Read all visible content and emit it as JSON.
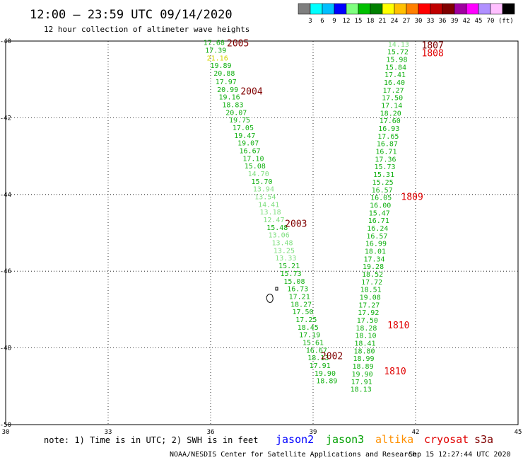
{
  "chart_data": {
    "type": "scatter",
    "title": "12:00 – 23:59 UTC 09/14/2020",
    "subtitle": "12 hour collection of altimeter wave heights",
    "xlim": [
      30,
      45
    ],
    "ylim": [
      -50,
      -40
    ],
    "x_ticks": [
      "30",
      "33",
      "36",
      "39",
      "42",
      "45"
    ],
    "y_ticks": [
      "-40",
      "-42",
      "-44",
      "-46",
      "-48",
      "-50"
    ],
    "grid": true,
    "legend": {
      "values": [
        "3",
        "6",
        "9",
        "12",
        "15",
        "18",
        "21",
        "24",
        "27",
        "30",
        "33",
        "36",
        "39",
        "42",
        "45",
        "70"
      ],
      "unit": "(ft)",
      "colors": [
        "#7f7f7f",
        "#00ffff",
        "#00bfff",
        "#0000ff",
        "#7fff7f",
        "#00c000",
        "#008000",
        "#ffff00",
        "#ffc000",
        "#ff8000",
        "#ff0000",
        "#c00000",
        "#800000",
        "#a000a0",
        "#ff00ff",
        "#b090ff",
        "#ffc0ff",
        "#000000"
      ]
    },
    "track_colors": {
      "light_green": "#7fdf7f",
      "green": "#12b012",
      "yellow": "#d4d400",
      "dark_red": "#800000",
      "red": "#e00000"
    },
    "series": [
      {
        "name": "jason3",
        "x": [
          36.1,
          36.15,
          36.2,
          36.3,
          36.4,
          36.45,
          36.5,
          36.55,
          36.65,
          36.75,
          36.85,
          36.95,
          37.0,
          37.1,
          37.15,
          37.25,
          37.3,
          37.4,
          37.5,
          37.55,
          37.6,
          37.7,
          37.75,
          37.85,
          37.95,
          38.0,
          38.1,
          38.15,
          38.2,
          38.3,
          38.35,
          38.45,
          38.55,
          38.6,
          38.65,
          38.7,
          38.8,
          38.85,
          38.9,
          39.0,
          39.1,
          39.15,
          39.2,
          39.35,
          39.4
        ],
        "y": [
          -40.03,
          -40.23,
          -40.43,
          -40.63,
          -40.83,
          -41.05,
          -41.25,
          -41.45,
          -41.65,
          -41.85,
          -42.05,
          -42.25,
          -42.45,
          -42.65,
          -42.85,
          -43.05,
          -43.25,
          -43.45,
          -43.65,
          -43.85,
          -44.05,
          -44.25,
          -44.45,
          -44.65,
          -44.85,
          -45.05,
          -45.25,
          -45.45,
          -45.65,
          -45.85,
          -46.05,
          -46.25,
          -46.45,
          -46.65,
          -46.85,
          -47.05,
          -47.25,
          -47.45,
          -47.65,
          -47.85,
          -48.05,
          -48.25,
          -48.45,
          -48.65,
          -48.85
        ],
        "values": [
          "17.68",
          "17.39",
          "21.16",
          "19.89",
          "20.88",
          "17.97",
          "20.99",
          "19.16",
          "18.83",
          "20.07",
          "19.75",
          "17.05",
          "19.47",
          "19.07",
          "16.67",
          "17.10",
          "15.08",
          "14.70",
          "15.70",
          "13.94",
          "13.54",
          "14.41",
          "13.18",
          "12.47",
          "15.48",
          "13.06",
          "13.48",
          "13.25",
          "13.33",
          "15.21",
          "15.73",
          "15.08",
          "16.73",
          "17.21",
          "18.27",
          "17.50",
          "17.25",
          "18.45",
          "17.19",
          "15.61",
          "16.67",
          "18.13",
          "17.91",
          "19.90",
          "18.89"
        ],
        "value_classes": [
          "green",
          "green",
          "yellow",
          "green",
          "green",
          "green",
          "green",
          "green",
          "green",
          "green",
          "green",
          "green",
          "green",
          "green",
          "green",
          "green",
          "green",
          "light_green",
          "green",
          "light_green",
          "light_green",
          "light_green",
          "light_green",
          "light_green",
          "green",
          "light_green",
          "light_green",
          "light_green",
          "light_green",
          "green",
          "green",
          "green",
          "green",
          "green",
          "green",
          "green",
          "green",
          "green",
          "green",
          "green",
          "green",
          "green",
          "green",
          "green",
          "green"
        ]
      },
      {
        "name": "jason3",
        "x": [
          41.5,
          41.48,
          41.45,
          41.42,
          41.4,
          41.38,
          41.35,
          41.32,
          41.3,
          41.27,
          41.25,
          41.22,
          41.2,
          41.17,
          41.14,
          41.12,
          41.1,
          41.07,
          41.04,
          41.02,
          40.99,
          40.97,
          40.94,
          40.92,
          40.89,
          40.87,
          40.84,
          40.82,
          40.79,
          40.76,
          40.74,
          40.72,
          40.69,
          40.67,
          40.64,
          40.62,
          40.59,
          40.56,
          40.54,
          40.52,
          40.5,
          40.48,
          40.46,
          40.44,
          40.42,
          40.4
        ],
        "y": [
          -40.07,
          -40.27,
          -40.47,
          -40.67,
          -40.87,
          -41.07,
          -41.27,
          -41.47,
          -41.67,
          -41.87,
          -42.07,
          -42.27,
          -42.47,
          -42.67,
          -42.87,
          -43.07,
          -43.27,
          -43.47,
          -43.67,
          -43.87,
          -44.07,
          -44.27,
          -44.47,
          -44.67,
          -44.87,
          -45.07,
          -45.27,
          -45.47,
          -45.67,
          -45.87,
          -46.07,
          -46.27,
          -46.47,
          -46.67,
          -46.87,
          -47.07,
          -47.27,
          -47.47,
          -47.67,
          -47.87,
          -48.07,
          -48.27,
          -48.47,
          -48.67,
          -48.87,
          -49.07
        ],
        "values": [
          "14.13",
          "15.72",
          "15.98",
          "15.84",
          "17.41",
          "16.40",
          "17.27",
          "17.50",
          "17.14",
          "18.20",
          "17.60",
          "16.93",
          "17.65",
          "16.87",
          "16.71",
          "17.36",
          "15.73",
          "15.31",
          "15.25",
          "16.57",
          "16.05",
          "16.00",
          "15.47",
          "16.71",
          "16.24",
          "16.57",
          "16.99",
          "18.01",
          "17.34",
          "19.28",
          "18.52",
          "17.72",
          "18.51",
          "19.08",
          "17.27",
          "17.92",
          "17.50",
          "18.28",
          "18.10",
          "18.41",
          "18.80",
          "18.99",
          "18.89",
          "19.90",
          "17.91",
          "18.13"
        ],
        "value_classes": [
          "light_green",
          "green",
          "green",
          "green",
          "green",
          "green",
          "green",
          "green",
          "green",
          "green",
          "green",
          "green",
          "green",
          "green",
          "green",
          "green",
          "green",
          "green",
          "green",
          "green",
          "green",
          "green",
          "green",
          "green",
          "green",
          "green",
          "green",
          "green",
          "green",
          "green",
          "green",
          "green",
          "green",
          "green",
          "green",
          "green",
          "green",
          "green",
          "green",
          "green",
          "green",
          "green",
          "green",
          "green",
          "green",
          "green"
        ]
      }
    ],
    "annotations": [
      {
        "text": "2005",
        "x": 36.8,
        "y": -40.05,
        "color": "dark_red"
      },
      {
        "text": "2004",
        "x": 37.2,
        "y": -41.3,
        "color": "dark_red"
      },
      {
        "text": "2003",
        "x": 38.5,
        "y": -44.75,
        "color": "dark_red"
      },
      {
        "text": "2002",
        "x": 39.55,
        "y": -48.2,
        "color": "dark_red"
      },
      {
        "text": "1807",
        "x": 42.5,
        "y": -40.1,
        "color": "dark_red"
      },
      {
        "text": "1808",
        "x": 42.5,
        "y": -40.3,
        "color": "red"
      },
      {
        "text": "1809",
        "x": 41.9,
        "y": -44.05,
        "color": "red"
      },
      {
        "text": "1810",
        "x": 41.5,
        "y": -47.4,
        "color": "red"
      },
      {
        "text": "1810",
        "x": 41.4,
        "y": -48.6,
        "color": "red"
      }
    ]
  },
  "footer": {
    "note": "note: 1) Time is in UTC; 2) SWH is in feet",
    "satellites": [
      {
        "label": "jason2",
        "color": "#0000ff"
      },
      {
        "label": "jason3",
        "color": "#00a000"
      },
      {
        "label": "altika",
        "color": "#ff9000"
      },
      {
        "label": "cryosat",
        "color": "#e00000"
      },
      {
        "label": "s3a",
        "color": "#800000"
      }
    ],
    "credit": "NOAA/NESDIS Center for Satellite Applications and Research",
    "timestamp": "Sep 15 12:27:44 UTC 2020"
  }
}
